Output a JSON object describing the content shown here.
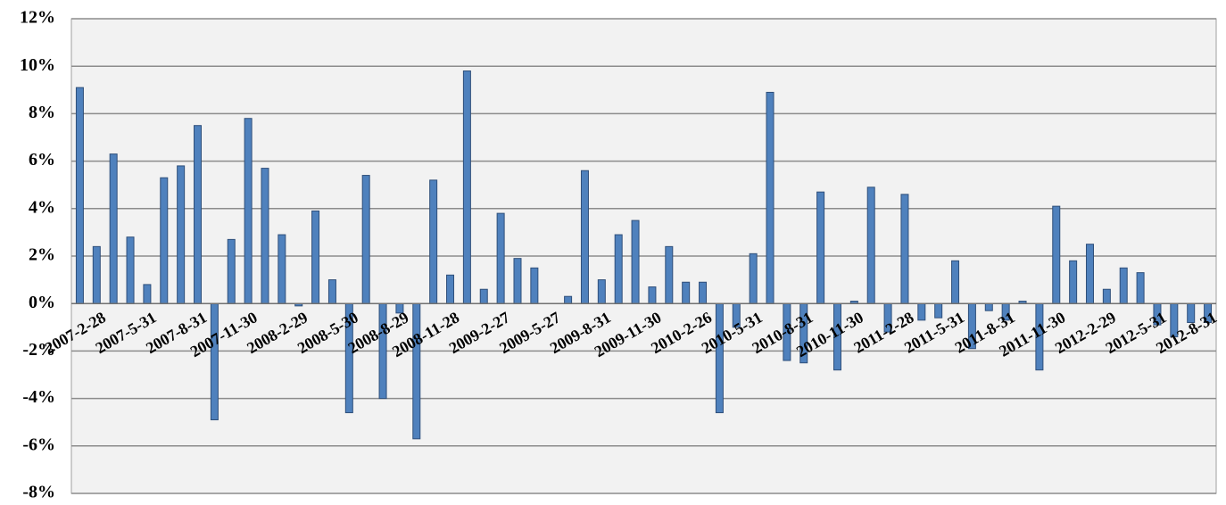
{
  "chart_data": {
    "type": "bar",
    "categories": [
      "2007-2-28",
      null,
      null,
      "2007-5-31",
      null,
      null,
      "2007-8-31",
      null,
      null,
      "2007-11-30",
      null,
      null,
      "2008-2-29",
      null,
      null,
      "2008-5-30",
      null,
      null,
      "2008-8-29",
      null,
      null,
      "2008-11-28",
      null,
      null,
      "2009-2-27",
      null,
      null,
      "2009-5-27",
      null,
      null,
      "2009-8-31",
      null,
      null,
      "2009-11-30",
      null,
      null,
      "2010-2-26",
      null,
      null,
      "2010-5-31",
      null,
      null,
      "2010-8-31",
      null,
      null,
      "2010-11-30",
      null,
      null,
      "2011-2-28",
      null,
      null,
      "2011-5-31",
      null,
      null,
      "2011-8-31",
      null,
      null,
      "2011-11-30",
      null,
      null,
      "2012-2-29",
      null,
      null,
      "2012-5-31",
      null,
      null,
      "2012-8-31",
      null
    ],
    "values": [
      9.1,
      2.4,
      6.3,
      2.8,
      0.8,
      5.3,
      5.8,
      7.5,
      -4.9,
      2.7,
      7.8,
      5.7,
      2.9,
      -0.1,
      3.9,
      1.0,
      -4.6,
      5.4,
      -4.0,
      -0.4,
      -5.7,
      5.2,
      1.2,
      9.8,
      0.6,
      3.8,
      1.9,
      1.5,
      0.0,
      0.3,
      5.6,
      1.0,
      2.9,
      3.5,
      0.7,
      2.4,
      0.9,
      0.9,
      -4.6,
      -1.0,
      2.1,
      8.9,
      -2.4,
      -2.5,
      4.7,
      -2.8,
      0.1,
      4.9,
      -1.2,
      4.6,
      -0.7,
      -0.6,
      1.8,
      -1.9,
      -0.3,
      -0.7,
      0.1,
      -2.8,
      4.1,
      1.8,
      2.5,
      0.6,
      1.5,
      1.3,
      -0.9,
      -1.4,
      -0.8,
      -0.8
    ],
    "color": "#4f81bd",
    "ylim": [
      -8,
      12
    ],
    "yticks": [
      {
        "value": -8,
        "label": "-8%"
      },
      {
        "value": -6,
        "label": "-6%"
      },
      {
        "value": -4,
        "label": "-4%"
      },
      {
        "value": -2,
        "label": "-2%"
      },
      {
        "value": 0,
        "label": "0%"
      },
      {
        "value": 2,
        "label": "2%"
      },
      {
        "value": 4,
        "label": "4%"
      },
      {
        "value": 6,
        "label": "6%"
      },
      {
        "value": 8,
        "label": "8%"
      },
      {
        "value": 10,
        "label": "10%"
      },
      {
        "value": 12,
        "label": "12%"
      }
    ],
    "grid": true
  }
}
